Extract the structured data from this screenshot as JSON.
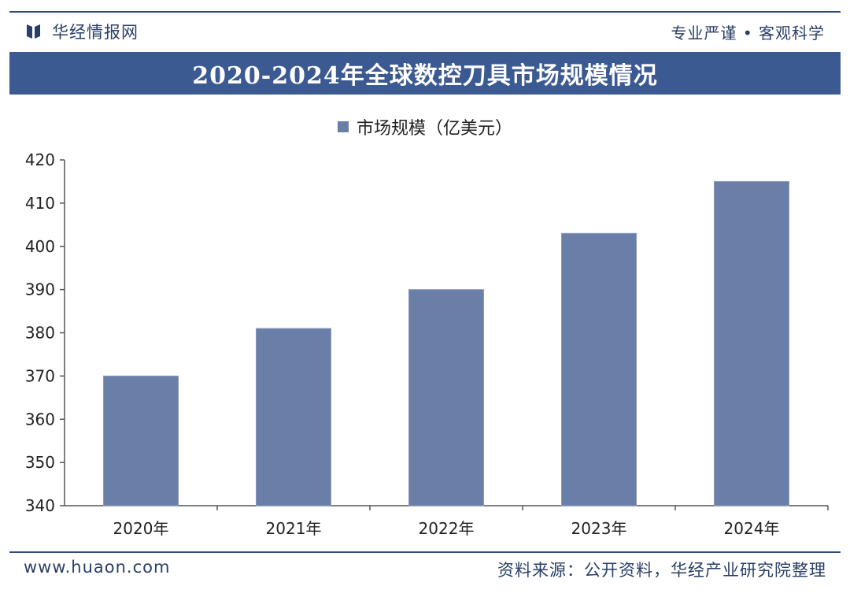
{
  "header": {
    "brand": "华经情报网",
    "slogan": "专业严谨 • 客观科学"
  },
  "footer": {
    "website": "www.huaon.com",
    "source": "资料来源：公开资料，华经产业研究院整理"
  },
  "colors": {
    "title_bar": "#3c5a92",
    "bar": "#6a7fa8",
    "brand_text": "#2a3f66"
  },
  "chart_data": {
    "type": "bar",
    "title": "2020-2024年全球数控刀具市场规模情况",
    "categories": [
      "2020年",
      "2021年",
      "2022年",
      "2023年",
      "2024年"
    ],
    "series": [
      {
        "name": "市场规模（亿美元）",
        "values": [
          370,
          381,
          390,
          403,
          415
        ]
      }
    ],
    "ylim": [
      340,
      420
    ],
    "yticks": [
      340,
      350,
      360,
      370,
      380,
      390,
      400,
      410,
      420
    ],
    "legend": "top-center",
    "grid": false
  }
}
